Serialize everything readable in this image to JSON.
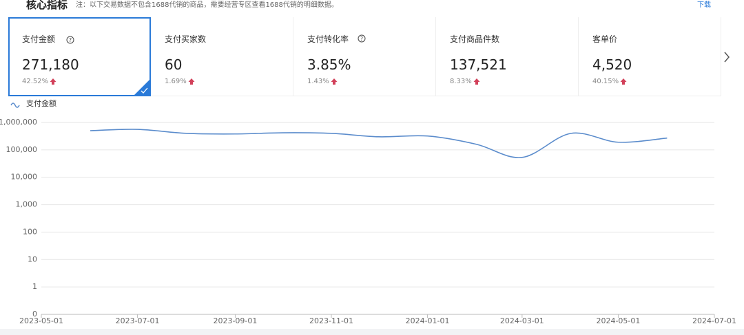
{
  "header": {
    "title": "核心指标",
    "note": "注：以下交易数据不包含1688代销的商品，需要经营专区查看1688代销的明细数据。",
    "action": "下载"
  },
  "cards": [
    {
      "label": "支付金额",
      "value": "271,180",
      "change": "42.52%"
    },
    {
      "label": "支付买家数",
      "value": "60",
      "change": "1.69%"
    },
    {
      "label": "支付转化率",
      "value": "3.85%",
      "change": "1.43%"
    },
    {
      "label": "支付商品件数",
      "value": "137,521",
      "change": "8.33%"
    },
    {
      "label": "客单价",
      "value": "4,520",
      "change": "40.15%"
    }
  ],
  "chart_data": {
    "type": "line",
    "log_scale": true,
    "grid": true,
    "x": [
      "2023-06-01",
      "2023-07-01",
      "2023-08-01",
      "2023-09-01",
      "2023-10-01",
      "2023-11-01",
      "2023-12-01",
      "2024-01-01",
      "2024-02-01",
      "2024-03-01",
      "2024-04-01",
      "2024-05-01",
      "2024-06-01"
    ],
    "series": [
      {
        "name": "支付金额",
        "color": "#5b8ccc",
        "values": [
          500000,
          560000,
          400000,
          380000,
          420000,
          400000,
          300000,
          320000,
          160000,
          53000,
          400000,
          190000,
          270000
        ]
      }
    ],
    "xlim": [
      "2023-05-01",
      "2024-07-01"
    ],
    "xticks": [
      "2023-05-01",
      "2023-07-01",
      "2023-09-01",
      "2023-11-01",
      "2024-01-01",
      "2024-03-01",
      "2024-05-01",
      "2024-07-01"
    ],
    "ylim": [
      0.1,
      1000000
    ],
    "yticks": [
      {
        "value": 0.1,
        "label": "0"
      },
      1,
      10,
      100,
      {
        "value": 1000,
        "label": "1,000"
      },
      {
        "value": 10000,
        "label": "10,000"
      },
      {
        "value": 100000,
        "label": "100,000"
      },
      {
        "value": 1000000,
        "label": "1,000,000"
      }
    ]
  }
}
